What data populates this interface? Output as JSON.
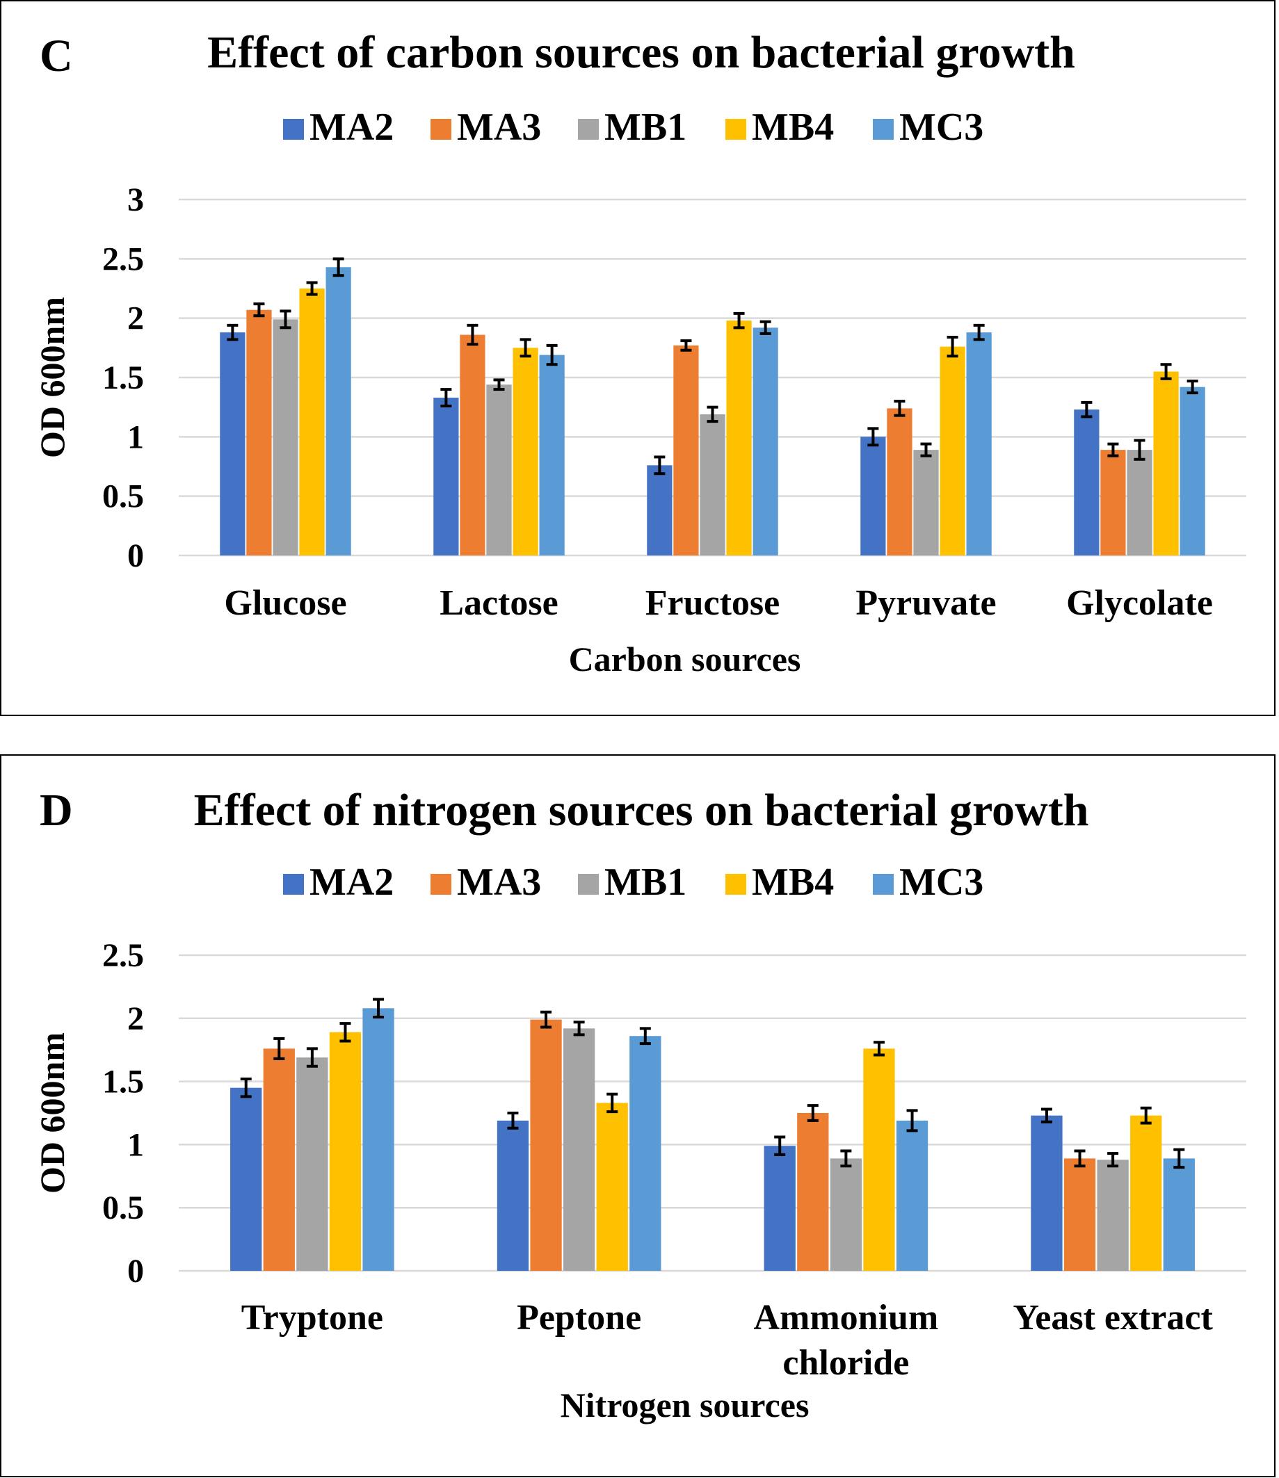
{
  "chart_data": [
    {
      "type": "bar",
      "panel_label": "C",
      "title": "Effect of carbon sources on bacterial growth",
      "xlabel": "Carbon sources",
      "ylabel": "OD 600nm",
      "ylim": [
        0,
        3
      ],
      "yticks": [
        "0",
        "0.5",
        "1",
        "1.5",
        "2",
        "2.5",
        "3"
      ],
      "ytick_values": [
        0,
        0.5,
        1,
        1.5,
        2,
        2.5,
        3
      ],
      "grid": true,
      "legend_position": "top",
      "categories": [
        [
          "Glucose"
        ],
        [
          "Lactose"
        ],
        [
          "Fructose"
        ],
        [
          "Pyruvate"
        ],
        [
          "Glycolate"
        ]
      ],
      "series": [
        {
          "name": "MA2",
          "color": "#4472c4",
          "values": [
            1.88,
            1.33,
            0.76,
            1.0,
            1.23
          ],
          "errors": [
            0.06,
            0.07,
            0.07,
            0.07,
            0.06
          ]
        },
        {
          "name": "MA3",
          "color": "#ed7d31",
          "values": [
            2.07,
            1.86,
            1.77,
            1.24,
            0.89
          ],
          "errors": [
            0.05,
            0.08,
            0.04,
            0.06,
            0.05
          ]
        },
        {
          "name": "MB1",
          "color": "#a5a5a5",
          "values": [
            1.99,
            1.44,
            1.19,
            0.89,
            0.89
          ],
          "errors": [
            0.07,
            0.04,
            0.06,
            0.05,
            0.08
          ]
        },
        {
          "name": "MB4",
          "color": "#ffc000",
          "values": [
            2.25,
            1.75,
            1.98,
            1.76,
            1.55
          ],
          "errors": [
            0.05,
            0.07,
            0.06,
            0.08,
            0.06
          ]
        },
        {
          "name": "MC3",
          "color": "#5b9bd5",
          "values": [
            2.43,
            1.69,
            1.92,
            1.88,
            1.42
          ],
          "errors": [
            0.07,
            0.08,
            0.05,
            0.06,
            0.05
          ]
        }
      ]
    },
    {
      "type": "bar",
      "panel_label": "D",
      "title": "Effect of nitrogen sources on bacterial growth",
      "xlabel": "Nitrogen sources",
      "ylabel": "OD 600nm",
      "ylim": [
        0,
        2.5
      ],
      "yticks": [
        "0",
        "0.5",
        "1",
        "1.5",
        "2",
        "2.5"
      ],
      "ytick_values": [
        0,
        0.5,
        1,
        1.5,
        2,
        2.5
      ],
      "grid": true,
      "legend_position": "top",
      "categories": [
        [
          "Tryptone"
        ],
        [
          "Peptone"
        ],
        [
          "Ammonium",
          "chloride"
        ],
        [
          "Yeast extract"
        ]
      ],
      "series": [
        {
          "name": "MA2",
          "color": "#4472c4",
          "values": [
            1.45,
            1.19,
            0.99,
            1.23
          ],
          "errors": [
            0.07,
            0.06,
            0.07,
            0.05
          ]
        },
        {
          "name": "MA3",
          "color": "#ed7d31",
          "values": [
            1.76,
            1.99,
            1.25,
            0.89
          ],
          "errors": [
            0.08,
            0.06,
            0.06,
            0.06
          ]
        },
        {
          "name": "MB1",
          "color": "#a5a5a5",
          "values": [
            1.69,
            1.92,
            0.89,
            0.88
          ],
          "errors": [
            0.07,
            0.05,
            0.06,
            0.05
          ]
        },
        {
          "name": "MB4",
          "color": "#ffc000",
          "values": [
            1.89,
            1.33,
            1.76,
            1.23
          ],
          "errors": [
            0.07,
            0.07,
            0.05,
            0.06
          ]
        },
        {
          "name": "MC3",
          "color": "#5b9bd5",
          "values": [
            2.08,
            1.86,
            1.19,
            0.89
          ],
          "errors": [
            0.07,
            0.06,
            0.08,
            0.07
          ]
        }
      ]
    }
  ]
}
